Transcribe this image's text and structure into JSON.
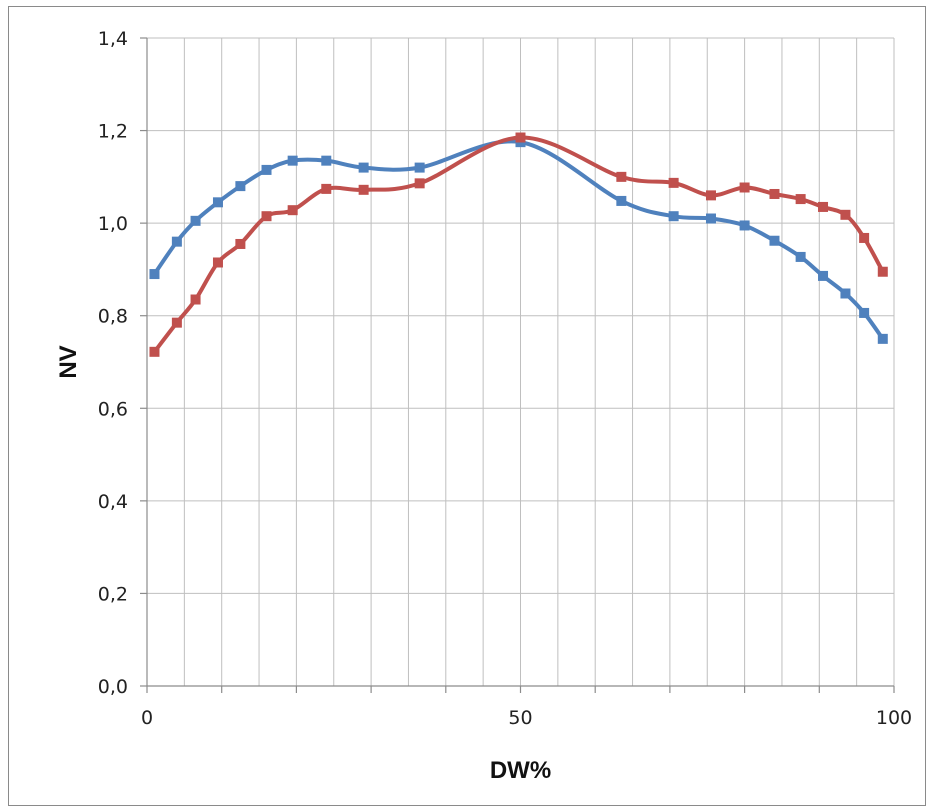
{
  "chart_data": {
    "type": "line",
    "title": "",
    "xlabel": "DW%",
    "ylabel": "NV",
    "xlim": [
      0,
      100
    ],
    "ylim": [
      0,
      1.4
    ],
    "x_ticks": [
      "0",
      "50",
      "100"
    ],
    "y_ticks": [
      "0,0",
      "0,2",
      "0,4",
      "0,6",
      "0,8",
      "1,0",
      "1,2",
      "1,4"
    ],
    "grid": true,
    "legend": "none",
    "series": [
      {
        "color": "#4f81bd",
        "marker": "square",
        "smooth": true,
        "points": [
          [
            1,
            0.89
          ],
          [
            4,
            0.96
          ],
          [
            6.5,
            1.005
          ],
          [
            9.5,
            1.045
          ],
          [
            12.5,
            1.08
          ],
          [
            16,
            1.115
          ],
          [
            19.5,
            1.135
          ],
          [
            24,
            1.135
          ],
          [
            29,
            1.12
          ],
          [
            36.5,
            1.12
          ],
          [
            50,
            1.175
          ],
          [
            63.5,
            1.048
          ],
          [
            70.5,
            1.015
          ],
          [
            75.5,
            1.01
          ],
          [
            80,
            0.995
          ],
          [
            84,
            0.962
          ],
          [
            87.5,
            0.927
          ],
          [
            90.5,
            0.886
          ],
          [
            93.5,
            0.848
          ],
          [
            96,
            0.806
          ],
          [
            98.5,
            0.75
          ]
        ]
      },
      {
        "color": "#c0504d",
        "marker": "square",
        "smooth": true,
        "points": [
          [
            1,
            0.722
          ],
          [
            4,
            0.785
          ],
          [
            6.5,
            0.835
          ],
          [
            9.5,
            0.915
          ],
          [
            12.5,
            0.955
          ],
          [
            16,
            1.015
          ],
          [
            19.5,
            1.028
          ],
          [
            24,
            1.074
          ],
          [
            29,
            1.072
          ],
          [
            36.5,
            1.086
          ],
          [
            50,
            1.185
          ],
          [
            63.5,
            1.1
          ],
          [
            70.5,
            1.087
          ],
          [
            75.5,
            1.06
          ],
          [
            80,
            1.077
          ],
          [
            84,
            1.063
          ],
          [
            87.5,
            1.052
          ],
          [
            90.5,
            1.035
          ],
          [
            93.5,
            1.018
          ],
          [
            96,
            0.968
          ],
          [
            98.5,
            0.895
          ]
        ]
      }
    ]
  }
}
